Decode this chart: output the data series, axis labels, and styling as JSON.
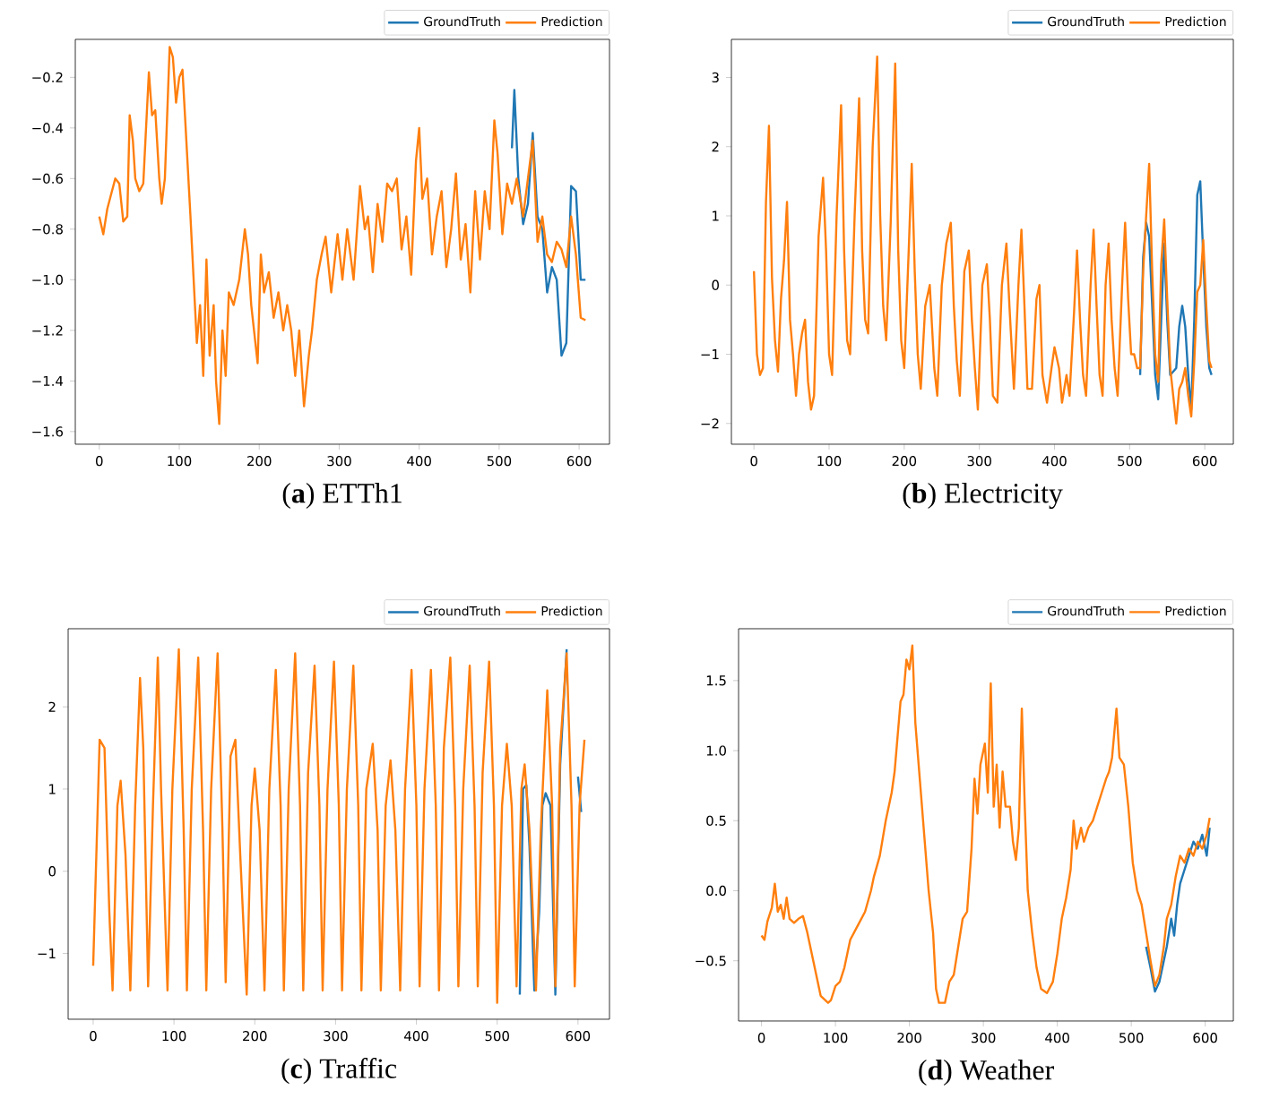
{
  "chart_data": [
    {
      "type": "line",
      "title": "(**a**) ETTh1",
      "legend": "top right",
      "xlim": [
        -30,
        638
      ],
      "ylim": [
        -1.65,
        -0.05
      ],
      "xticks": [
        0,
        100,
        200,
        300,
        400,
        500,
        600
      ],
      "yticks": [
        {
          "value": -1.6,
          "label": "−1.6"
        },
        {
          "value": -1.4,
          "label": "−1.4"
        },
        {
          "value": -1.2,
          "label": "−1.2"
        },
        {
          "value": -1.0,
          "label": "−1.0"
        },
        {
          "value": -0.8,
          "label": "−0.8"
        },
        {
          "value": -0.6,
          "label": "−0.6"
        },
        {
          "value": -0.4,
          "label": "−0.4"
        },
        {
          "value": -0.2,
          "label": "−0.2"
        }
      ],
      "series": [
        {
          "name": "GroundTruth",
          "color": "#1f77b4",
          "x": [
            516,
            519,
            524,
            530,
            536,
            542,
            548,
            554,
            560,
            566,
            572,
            578,
            584,
            590,
            596,
            602,
            608
          ],
          "values": [
            -0.48,
            -0.25,
            -0.6,
            -0.78,
            -0.7,
            -0.42,
            -0.75,
            -0.8,
            -1.05,
            -0.95,
            -1.0,
            -1.3,
            -1.25,
            -0.63,
            -0.65,
            -1.0,
            -1.0
          ]
        },
        {
          "name": "Prediction",
          "color": "#ff7f0e",
          "x": [
            0,
            5,
            10,
            15,
            20,
            25,
            30,
            35,
            38,
            42,
            45,
            50,
            55,
            58,
            62,
            66,
            70,
            75,
            78,
            82,
            88,
            92,
            96,
            100,
            104,
            108,
            114,
            118,
            122,
            126,
            130,
            134,
            138,
            143,
            146,
            150,
            154,
            158,
            162,
            168,
            175,
            182,
            186,
            190,
            198,
            202,
            206,
            212,
            218,
            224,
            230,
            235,
            240,
            245,
            250,
            256,
            262,
            266,
            272,
            278,
            283,
            290,
            298,
            304,
            310,
            318,
            326,
            332,
            336,
            342,
            348,
            354,
            360,
            366,
            372,
            378,
            384,
            390,
            396,
            400,
            404,
            410,
            416,
            422,
            428,
            434,
            440,
            446,
            452,
            458,
            464,
            470,
            476,
            482,
            488,
            494,
            498,
            504,
            510,
            516,
            522,
            530,
            536,
            542,
            548,
            554,
            560,
            566,
            572,
            578,
            584,
            590,
            596,
            602,
            608
          ],
          "values": [
            -0.75,
            -0.82,
            -0.72,
            -0.66,
            -0.6,
            -0.62,
            -0.77,
            -0.75,
            -0.35,
            -0.45,
            -0.6,
            -0.65,
            -0.62,
            -0.43,
            -0.18,
            -0.35,
            -0.33,
            -0.6,
            -0.7,
            -0.6,
            -0.08,
            -0.12,
            -0.3,
            -0.2,
            -0.17,
            -0.4,
            -0.75,
            -1.0,
            -1.25,
            -1.1,
            -1.38,
            -0.92,
            -1.3,
            -1.1,
            -1.4,
            -1.57,
            -1.2,
            -1.38,
            -1.05,
            -1.1,
            -1.0,
            -0.8,
            -0.9,
            -1.1,
            -1.33,
            -0.9,
            -1.05,
            -0.97,
            -1.15,
            -1.05,
            -1.2,
            -1.1,
            -1.2,
            -1.38,
            -1.2,
            -1.5,
            -1.3,
            -1.2,
            -1.0,
            -0.9,
            -0.83,
            -1.05,
            -0.82,
            -1.0,
            -0.8,
            -1.0,
            -0.63,
            -0.8,
            -0.75,
            -0.97,
            -0.7,
            -0.85,
            -0.62,
            -0.65,
            -0.6,
            -0.88,
            -0.75,
            -0.98,
            -0.53,
            -0.4,
            -0.68,
            -0.6,
            -0.9,
            -0.75,
            -0.65,
            -0.95,
            -0.8,
            -0.58,
            -0.92,
            -0.78,
            -1.05,
            -0.65,
            -0.92,
            -0.65,
            -0.8,
            -0.37,
            -0.5,
            -0.82,
            -0.62,
            -0.7,
            -0.6,
            -0.75,
            -0.6,
            -0.45,
            -0.85,
            -0.75,
            -0.9,
            -0.93,
            -0.85,
            -0.88,
            -0.95,
            -0.75,
            -0.9,
            -1.15,
            -1.16
          ]
        }
      ]
    },
    {
      "type": "line",
      "title": "(**b**) Electricity",
      "legend": "top right",
      "xlim": [
        -30,
        638
      ],
      "ylim": [
        -2.3,
        3.55
      ],
      "xticks": [
        0,
        100,
        200,
        300,
        400,
        500,
        600
      ],
      "yticks": [
        {
          "value": -2,
          "label": "−2"
        },
        {
          "value": -1,
          "label": "−1"
        },
        0,
        1,
        2,
        3
      ],
      "series": [
        {
          "name": "GroundTruth",
          "color": "#1f77b4",
          "x": [
            514,
            518,
            522,
            526,
            530,
            534,
            538,
            542,
            546,
            550,
            554,
            562,
            566,
            570,
            574,
            578,
            582,
            586,
            590,
            594,
            598,
            602,
            606,
            609
          ],
          "values": [
            -1.3,
            0.4,
            0.9,
            0.7,
            -0.3,
            -1.3,
            -1.65,
            -0.5,
            0.6,
            -0.5,
            -1.3,
            -1.2,
            -0.6,
            -0.3,
            -0.6,
            -1.3,
            -1.8,
            -0.5,
            1.3,
            1.5,
            0.4,
            -0.6,
            -1.2,
            -1.3
          ]
        },
        {
          "name": "Prediction",
          "color": "#ff7f0e",
          "x": [
            0,
            4,
            8,
            12,
            16,
            20,
            24,
            28,
            32,
            36,
            40,
            44,
            48,
            52,
            56,
            60,
            64,
            68,
            72,
            76,
            80,
            86,
            92,
            96,
            100,
            104,
            110,
            116,
            120,
            124,
            128,
            134,
            140,
            144,
            148,
            152,
            158,
            164,
            168,
            172,
            176,
            182,
            188,
            192,
            196,
            200,
            206,
            210,
            214,
            218,
            222,
            228,
            234,
            240,
            244,
            250,
            256,
            262,
            266,
            270,
            274,
            280,
            286,
            290,
            294,
            298,
            304,
            310,
            314,
            318,
            324,
            330,
            336,
            340,
            346,
            352,
            356,
            360,
            364,
            370,
            376,
            380,
            384,
            390,
            396,
            400,
            406,
            410,
            416,
            420,
            426,
            430,
            434,
            438,
            442,
            448,
            452,
            456,
            460,
            464,
            468,
            472,
            476,
            480,
            484,
            490,
            494,
            498,
            502,
            506,
            510,
            514,
            518,
            522,
            526,
            530,
            534,
            538,
            542,
            546,
            550,
            554,
            558,
            562,
            566,
            570,
            574,
            578,
            582,
            586,
            590,
            594,
            598,
            602,
            606,
            609
          ],
          "values": [
            0.2,
            -1.0,
            -1.3,
            -1.2,
            1.2,
            2.3,
            0.1,
            -0.8,
            -1.25,
            -0.2,
            0.35,
            1.2,
            -0.5,
            -1.0,
            -1.6,
            -1.0,
            -0.7,
            -0.5,
            -1.4,
            -1.8,
            -1.6,
            0.7,
            1.55,
            0.5,
            -1.0,
            -1.3,
            1.0,
            2.6,
            0.5,
            -0.8,
            -1.0,
            1.0,
            2.7,
            0.5,
            -0.5,
            -0.7,
            2.0,
            3.3,
            1.0,
            -0.3,
            -0.8,
            0.9,
            3.2,
            0.5,
            -0.8,
            -1.2,
            0.5,
            1.75,
            0.2,
            -1.0,
            -1.5,
            -0.3,
            0.0,
            -1.2,
            -1.6,
            0.0,
            0.6,
            0.9,
            -0.3,
            -1.1,
            -1.6,
            0.2,
            0.5,
            -0.5,
            -1.2,
            -1.8,
            0.0,
            0.3,
            -0.5,
            -1.6,
            -1.7,
            0.0,
            0.6,
            -0.3,
            -1.5,
            0.0,
            0.8,
            -0.3,
            -1.5,
            -1.5,
            -0.2,
            0.0,
            -1.3,
            -1.7,
            -1.2,
            -0.9,
            -1.2,
            -1.7,
            -1.3,
            -1.6,
            -0.4,
            0.5,
            -0.5,
            -1.3,
            -1.6,
            0.0,
            0.8,
            -0.3,
            -1.3,
            -1.6,
            0.0,
            0.6,
            -0.5,
            -1.2,
            -1.6,
            0.0,
            0.9,
            -0.2,
            -1.0,
            -1.0,
            -1.2,
            -1.2,
            0.2,
            1.0,
            1.75,
            0.2,
            -1.0,
            -1.4,
            0.3,
            0.95,
            -0.2,
            -1.2,
            -1.6,
            -2.0,
            -1.5,
            -1.4,
            -1.2,
            -1.6,
            -1.9,
            -1.1,
            -0.1,
            0.0,
            0.65,
            -0.3,
            -1.1,
            -1.2
          ]
        }
      ]
    },
    {
      "type": "line",
      "title": "(**c**) Traffic",
      "legend": "top right",
      "xlim": [
        -31,
        639
      ],
      "ylim": [
        -1.8,
        2.95
      ],
      "xticks": [
        0,
        100,
        200,
        300,
        400,
        500,
        600
      ],
      "yticks": [
        {
          "value": -1,
          "label": "−1"
        },
        0,
        1,
        2
      ],
      "series": [
        {
          "name": "GroundTruth",
          "color": "#1f77b4",
          "x": [
            528,
            532,
            536,
            540,
            546,
            552,
            556,
            560,
            566,
            572,
            578,
            586,
            590,
            600,
            604
          ],
          "values": [
            -1.5,
            1.0,
            1.05,
            0.3,
            -1.45,
            -0.5,
            0.8,
            0.95,
            0.8,
            -1.5,
            1.3,
            2.7,
            null,
            1.15,
            0.72
          ]
        },
        {
          "name": "Prediction",
          "color": "#ff7f0e",
          "x": [
            0,
            8,
            14,
            20,
            24,
            30,
            34,
            40,
            46,
            52,
            58,
            62,
            68,
            74,
            80,
            84,
            92,
            98,
            106,
            112,
            116,
            122,
            130,
            136,
            140,
            146,
            154,
            160,
            164,
            170,
            176,
            182,
            190,
            196,
            200,
            206,
            212,
            218,
            226,
            232,
            236,
            242,
            250,
            256,
            260,
            266,
            274,
            280,
            284,
            290,
            298,
            304,
            308,
            314,
            322,
            328,
            332,
            338,
            346,
            352,
            356,
            362,
            368,
            374,
            380,
            386,
            394,
            400,
            404,
            410,
            418,
            424,
            428,
            434,
            442,
            448,
            452,
            458,
            466,
            472,
            476,
            482,
            490,
            496,
            500,
            506,
            512,
            518,
            524,
            530,
            534,
            540,
            548,
            554,
            562,
            568,
            572,
            578,
            586,
            592,
            596,
            602,
            608
          ],
          "values": [
            -1.15,
            1.6,
            1.5,
            -0.5,
            -1.45,
            0.8,
            1.1,
            0.2,
            -1.45,
            0.8,
            2.35,
            1.5,
            -1.4,
            0.8,
            2.6,
            1.0,
            -1.45,
            1.0,
            2.7,
            0.5,
            -1.45,
            1.0,
            2.6,
            0.5,
            -1.45,
            1.0,
            2.65,
            0.5,
            -1.35,
            1.4,
            1.6,
            0.2,
            -1.5,
            0.8,
            1.25,
            0.5,
            -1.45,
            1.0,
            2.45,
            0.8,
            -1.45,
            1.0,
            2.65,
            0.8,
            -1.45,
            1.2,
            2.5,
            0.8,
            -1.45,
            1.0,
            2.55,
            0.8,
            -1.45,
            1.0,
            2.5,
            0.8,
            -1.45,
            1.0,
            1.55,
            0.5,
            -1.45,
            0.8,
            1.35,
            0.5,
            -1.45,
            1.0,
            2.45,
            0.8,
            -1.4,
            1.0,
            2.45,
            0.8,
            -1.45,
            1.5,
            2.6,
            0.8,
            -1.4,
            1.0,
            2.5,
            0.8,
            -1.4,
            1.2,
            2.55,
            0.8,
            -1.6,
            0.8,
            1.55,
            0.8,
            -1.4,
            1.0,
            1.3,
            0.5,
            -1.45,
            0.5,
            2.2,
            0.8,
            -1.4,
            1.5,
            2.65,
            0.8,
            -1.4,
            0.8,
            1.6
          ]
        }
      ]
    },
    {
      "type": "line",
      "title": "(**d**) Weather",
      "legend": "top right",
      "xlim": [
        -31,
        638
      ],
      "ylim": [
        -0.93,
        1.87
      ],
      "xticks": [
        0,
        100,
        200,
        300,
        400,
        500,
        600
      ],
      "yticks": [
        {
          "value": -0.5,
          "label": "−0.5"
        },
        {
          "value": 0,
          "label": "0.0"
        },
        {
          "value": 0.5,
          "label": "0.5"
        },
        {
          "value": 1,
          "label": "1.0"
        },
        {
          "value": 1.5,
          "label": "1.5"
        }
      ],
      "series": [
        {
          "name": "GroundTruth",
          "color": "#1f77b4",
          "x": [
            520,
            526,
            532,
            538,
            544,
            548,
            554,
            558,
            562,
            566,
            584,
            590,
            596,
            602,
            606
          ],
          "values": [
            -0.4,
            -0.55,
            -0.72,
            -0.65,
            -0.5,
            -0.4,
            -0.2,
            -0.32,
            -0.1,
            0.05,
            0.35,
            0.3,
            0.4,
            0.25,
            0.45
          ]
        },
        {
          "name": "Prediction",
          "color": "#ff7f0e",
          "x": [
            0,
            4,
            8,
            14,
            18,
            22,
            26,
            30,
            34,
            38,
            44,
            50,
            56,
            62,
            70,
            80,
            90,
            94,
            100,
            106,
            112,
            120,
            130,
            140,
            148,
            152,
            160,
            168,
            176,
            180,
            184,
            188,
            192,
            196,
            200,
            204,
            208,
            214,
            220,
            226,
            232,
            236,
            240,
            248,
            254,
            260,
            266,
            272,
            278,
            284,
            288,
            292,
            296,
            302,
            306,
            310,
            314,
            318,
            322,
            326,
            330,
            336,
            340,
            344,
            348,
            352,
            356,
            360,
            366,
            372,
            378,
            386,
            394,
            400,
            406,
            412,
            418,
            422,
            426,
            432,
            436,
            442,
            448,
            454,
            460,
            466,
            470,
            474,
            480,
            484,
            490,
            496,
            502,
            508,
            514,
            520,
            526,
            532,
            538,
            544,
            548,
            554,
            560,
            566,
            572,
            578,
            584,
            590,
            596,
            602,
            606
          ],
          "values": [
            -0.32,
            -0.35,
            -0.22,
            -0.12,
            0.05,
            -0.15,
            -0.1,
            -0.2,
            -0.05,
            -0.2,
            -0.23,
            -0.2,
            -0.18,
            -0.3,
            -0.5,
            -0.75,
            -0.8,
            -0.78,
            -0.68,
            -0.65,
            -0.55,
            -0.35,
            -0.25,
            -0.15,
            0.0,
            0.1,
            0.25,
            0.5,
            0.7,
            0.85,
            1.1,
            1.35,
            1.4,
            1.65,
            1.58,
            1.75,
            1.2,
            0.8,
            0.4,
            0.0,
            -0.3,
            -0.7,
            -0.8,
            -0.8,
            -0.65,
            -0.6,
            -0.4,
            -0.2,
            -0.15,
            0.3,
            0.8,
            0.55,
            0.9,
            1.05,
            0.7,
            1.48,
            0.6,
            0.9,
            0.45,
            0.85,
            0.6,
            0.6,
            0.35,
            0.22,
            0.45,
            1.3,
            0.6,
            0.0,
            -0.3,
            -0.55,
            -0.7,
            -0.73,
            -0.65,
            -0.45,
            -0.2,
            -0.05,
            0.15,
            0.5,
            0.3,
            0.45,
            0.35,
            0.45,
            0.5,
            0.6,
            0.7,
            0.8,
            0.85,
            0.95,
            1.3,
            0.95,
            0.9,
            0.6,
            0.2,
            0.0,
            -0.1,
            -0.3,
            -0.5,
            -0.68,
            -0.6,
            -0.4,
            -0.2,
            -0.1,
            0.1,
            0.25,
            0.2,
            0.3,
            0.25,
            0.35,
            0.3,
            0.4,
            0.52
          ]
        }
      ]
    }
  ]
}
